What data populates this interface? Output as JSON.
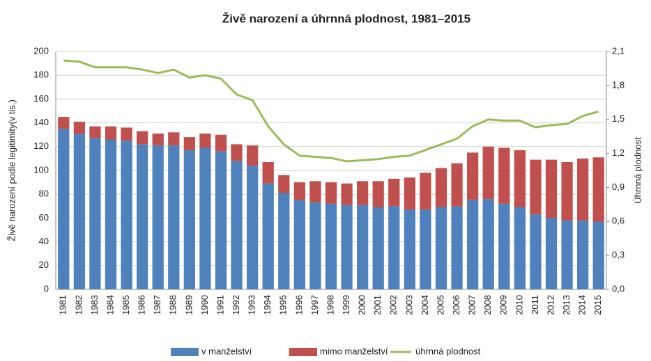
{
  "chart_data": {
    "type": "bar",
    "stacked": true,
    "title": "Živě narození a úhrnná plodnost, 1981–2015",
    "y_label": "Živě narození podle legitimity(v tis.)",
    "y2_label": "Úhrnná plodnost",
    "categories": [
      "1981",
      "1982",
      "1983",
      "1984",
      "1985",
      "1986",
      "1987",
      "1988",
      "1989",
      "1990",
      "1991",
      "1992",
      "1993",
      "1994",
      "1995",
      "1996",
      "1997",
      "1998",
      "1999",
      "2000",
      "2001",
      "2002",
      "2003",
      "2004",
      "2005",
      "2006",
      "2007",
      "2008",
      "2009",
      "2010",
      "2011",
      "2012",
      "2013",
      "2014",
      "2015"
    ],
    "series": [
      {
        "name": "v manželství",
        "type": "bar",
        "color": "#4f81bd",
        "values": [
          135,
          131,
          127,
          126,
          125,
          122,
          121,
          121,
          117,
          119,
          116,
          108,
          104,
          89,
          81,
          75,
          73,
          72,
          71,
          71,
          69,
          70,
          67,
          67,
          69,
          70,
          75,
          76,
          72,
          69,
          63,
          60,
          58,
          58,
          57
        ]
      },
      {
        "name": "mimo manželství",
        "type": "bar",
        "color": "#c0504d",
        "values": [
          10,
          10,
          10,
          11,
          11,
          11,
          10,
          11,
          11,
          12,
          14,
          14,
          17,
          18,
          15,
          15,
          18,
          18,
          18,
          20,
          22,
          23,
          27,
          31,
          33,
          36,
          40,
          44,
          47,
          48,
          46,
          49,
          49,
          52,
          54
        ]
      },
      {
        "name": "úhrnná plodnost",
        "type": "line",
        "axis": "y2",
        "color": "#9bbb59",
        "values": [
          2.02,
          2.01,
          1.96,
          1.96,
          1.96,
          1.94,
          1.91,
          1.94,
          1.87,
          1.89,
          1.86,
          1.72,
          1.67,
          1.44,
          1.28,
          1.18,
          1.17,
          1.16,
          1.13,
          1.14,
          1.15,
          1.17,
          1.18,
          1.23,
          1.28,
          1.33,
          1.44,
          1.5,
          1.49,
          1.49,
          1.43,
          1.45,
          1.46,
          1.53,
          1.57
        ]
      }
    ],
    "ylim": [
      0,
      200
    ],
    "yticks": [
      0,
      20,
      40,
      60,
      80,
      100,
      120,
      140,
      160,
      180,
      200
    ],
    "y2lim": [
      0,
      2.1
    ],
    "y2ticks": [
      {
        "value": 0,
        "label": "0,0"
      },
      {
        "value": 0.3,
        "label": "0,3"
      },
      {
        "value": 0.6,
        "label": "0,6"
      },
      {
        "value": 0.9,
        "label": "0,9"
      },
      {
        "value": 1.2,
        "label": "1,2"
      },
      {
        "value": 1.5,
        "label": "1,5"
      },
      {
        "value": 1.8,
        "label": "1,8"
      },
      {
        "value": 2.1,
        "label": "2,1"
      }
    ],
    "grid": true,
    "legend": "bottom"
  }
}
